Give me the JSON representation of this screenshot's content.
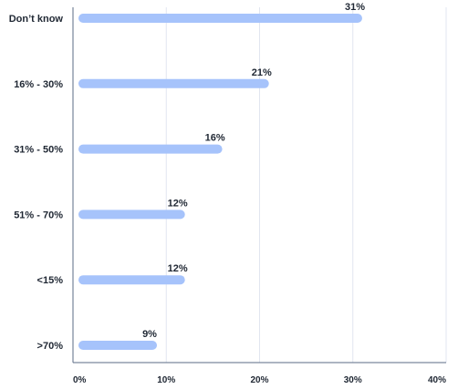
{
  "chart_data": {
    "type": "bar",
    "orientation": "horizontal",
    "categories": [
      "Don’t know",
      "16% - 30%",
      "31% - 50%",
      "51% - 70%",
      "<15%",
      ">70%"
    ],
    "values": [
      31,
      21,
      16,
      12,
      12,
      9
    ],
    "value_labels": [
      "31%",
      "21%",
      "16%",
      "12%",
      "12%",
      "9%"
    ],
    "xticks": [
      0,
      10,
      20,
      30,
      40
    ],
    "xtick_labels": [
      "0%",
      "10%",
      "20%",
      "30%",
      "40%"
    ],
    "xlim": [
      0,
      40
    ],
    "grid": true,
    "colors": {
      "bar": "#a6c3fb",
      "grid": "#e1e6f0",
      "axis": "#5b6b86",
      "text": "#1f2733"
    }
  }
}
